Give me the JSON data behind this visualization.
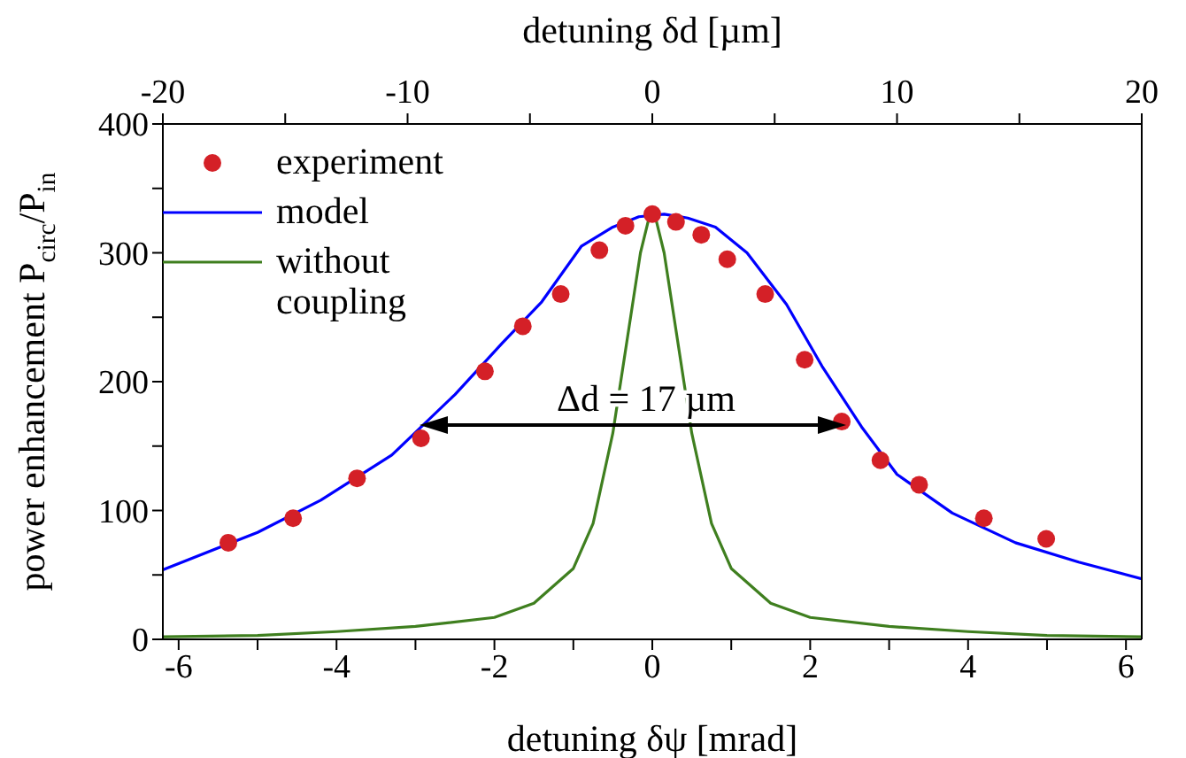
{
  "chart_data": {
    "type": "scatter",
    "xlabel": "detuning δψ [mrad]",
    "x2label": "detuning δd [µm]",
    "ylabel": "power enhancement P$_{circ}$/P$_{in}$",
    "xlim": [
      -6.2,
      6.2
    ],
    "xticks": [
      -6,
      {
        "value": -5,
        "label": null
      },
      -4,
      {
        "value": -3,
        "label": null
      },
      -2,
      {
        "value": -1,
        "label": null
      },
      0,
      {
        "value": 1,
        "label": null
      },
      2,
      {
        "value": 3,
        "label": null
      },
      4,
      {
        "value": 5,
        "label": null
      },
      6
    ],
    "x2lim": [
      -20,
      20
    ],
    "x2ticks": [
      -20,
      {
        "value": -15,
        "label": null
      },
      -10,
      {
        "value": -5,
        "label": null
      },
      0,
      {
        "value": 5,
        "label": null
      },
      10,
      {
        "value": 15,
        "label": null
      },
      20
    ],
    "ylim": [
      0,
      400
    ],
    "yticks": [
      0,
      {
        "value": 50,
        "label": null
      },
      100,
      {
        "value": 150,
        "label": null
      },
      200,
      {
        "value": 250,
        "label": null
      },
      300,
      {
        "value": 350,
        "label": null
      },
      400
    ],
    "legend": "top left",
    "annotations": [
      "Δd = 17 µm"
    ],
    "series": [
      {
        "name": "experiment",
        "marker": "circle",
        "color": "#d42027",
        "x": [
          -5.37,
          -4.55,
          -3.74,
          -2.93,
          -2.12,
          -1.64,
          -1.16,
          -0.67,
          -0.34,
          0,
          0.3,
          0.62,
          0.95,
          1.43,
          1.93,
          2.4,
          2.89,
          3.38,
          4.2,
          4.99
        ],
        "values": [
          75,
          94,
          125,
          156,
          208,
          243,
          268,
          302,
          321,
          330,
          324,
          314,
          295,
          268,
          217,
          169,
          139,
          120,
          94,
          78
        ]
      },
      {
        "name": "model",
        "type": "line",
        "color": "#0000ff",
        "x": [
          -6.2,
          -5.0,
          -4.2,
          -3.3,
          -2.5,
          -1.9,
          -1.4,
          -0.9,
          -0.5,
          -0.17,
          0.15,
          0.45,
          0.8,
          1.2,
          1.7,
          2.15,
          2.65,
          3.1,
          3.8,
          4.6,
          5.4,
          6.2
        ],
        "values": [
          54,
          83,
          108,
          143,
          190,
          230,
          262,
          305,
          320,
          328,
          330,
          327,
          320,
          300,
          260,
          212,
          165,
          128,
          98,
          75,
          60,
          47
        ]
      },
      {
        "name": "without coupling",
        "type": "line",
        "color": "#3f7f1f",
        "x": [
          -6.2,
          -5,
          -4,
          -3,
          -2,
          -1.5,
          -1,
          -0.75,
          -0.5,
          -0.3,
          -0.15,
          -0.05,
          0.05,
          0.15,
          0.3,
          0.5,
          0.75,
          1,
          1.5,
          2,
          3,
          4,
          5,
          6.2
        ],
        "values": [
          2,
          3,
          6,
          10,
          17,
          28,
          55,
          90,
          160,
          240,
          300,
          325,
          325,
          300,
          240,
          160,
          90,
          55,
          28,
          17,
          10,
          6,
          3,
          2
        ]
      }
    ]
  }
}
